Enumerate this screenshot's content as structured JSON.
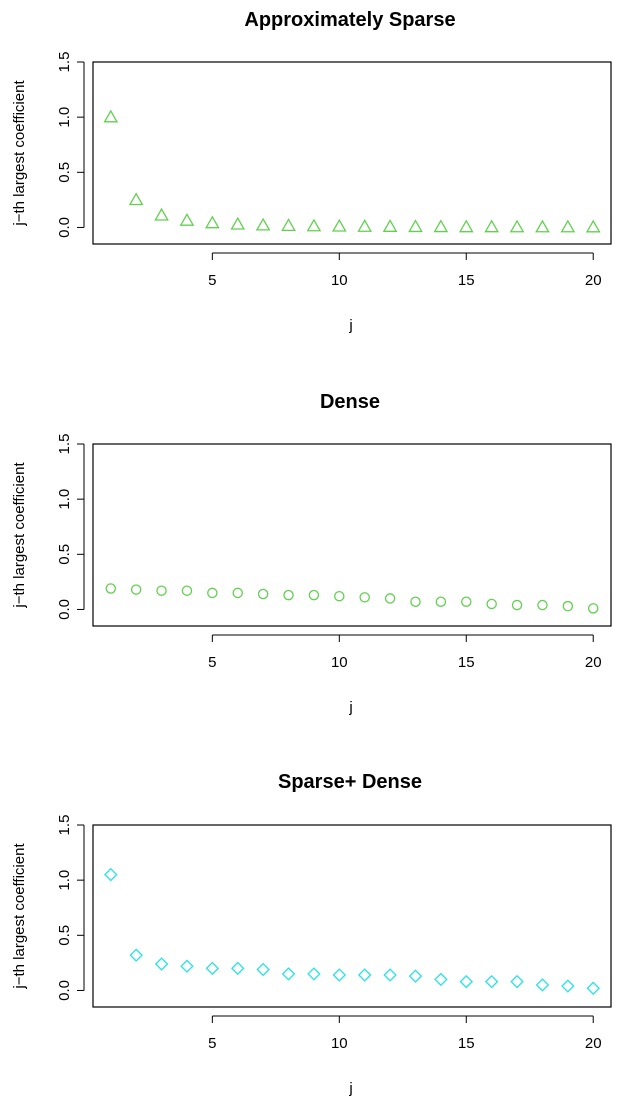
{
  "chart_data": [
    {
      "type": "scatter",
      "title": "Approximately Sparse",
      "xlabel": "j",
      "ylabel": "j−th largest coefficient",
      "xlim": [
        0.3,
        20.7
      ],
      "ylim": [
        -0.15,
        1.5
      ],
      "xticks": [
        "5",
        "10",
        "15",
        "20"
      ],
      "yticks": [
        "0.0",
        "0.5",
        "1.0",
        "1.5"
      ],
      "marker": "triangle",
      "color": "#61D04F",
      "grid": false,
      "x": [
        1,
        2,
        3,
        4,
        5,
        6,
        7,
        8,
        9,
        10,
        11,
        12,
        13,
        14,
        15,
        16,
        17,
        18,
        19,
        20
      ],
      "y": [
        1.0,
        0.25,
        0.11,
        0.0625,
        0.04,
        0.028,
        0.02,
        0.016,
        0.012,
        0.01,
        0.008,
        0.007,
        0.006,
        0.005,
        0.004,
        0.004,
        0.003,
        0.003,
        0.003,
        0.0025
      ]
    },
    {
      "type": "scatter",
      "title": "Dense",
      "xlabel": "j",
      "ylabel": "j−th largest coefficient",
      "xlim": [
        0.3,
        20.7
      ],
      "ylim": [
        -0.15,
        1.5
      ],
      "xticks": [
        "5",
        "10",
        "15",
        "20"
      ],
      "yticks": [
        "0.0",
        "0.5",
        "1.0",
        "1.5"
      ],
      "marker": "circle",
      "color": "#61D04F",
      "grid": false,
      "x": [
        1,
        2,
        3,
        4,
        5,
        6,
        7,
        8,
        9,
        10,
        11,
        12,
        13,
        14,
        15,
        16,
        17,
        18,
        19,
        20
      ],
      "y": [
        0.19,
        0.18,
        0.17,
        0.17,
        0.15,
        0.15,
        0.14,
        0.13,
        0.13,
        0.12,
        0.11,
        0.1,
        0.07,
        0.07,
        0.07,
        0.05,
        0.04,
        0.04,
        0.03,
        0.01
      ]
    },
    {
      "type": "scatter",
      "title": "Sparse+ Dense",
      "xlabel": "j",
      "ylabel": "j−th largest coefficient",
      "xlim": [
        0.3,
        20.7
      ],
      "ylim": [
        -0.15,
        1.5
      ],
      "xticks": [
        "5",
        "10",
        "15",
        "20"
      ],
      "yticks": [
        "0.0",
        "0.5",
        "1.0",
        "1.5"
      ],
      "marker": "diamond",
      "color": "#28E2E5",
      "grid": false,
      "x": [
        1,
        2,
        3,
        4,
        5,
        6,
        7,
        8,
        9,
        10,
        11,
        12,
        13,
        14,
        15,
        16,
        17,
        18,
        19,
        20
      ],
      "y": [
        1.05,
        0.32,
        0.24,
        0.22,
        0.2,
        0.2,
        0.19,
        0.15,
        0.15,
        0.14,
        0.14,
        0.14,
        0.13,
        0.1,
        0.08,
        0.08,
        0.08,
        0.05,
        0.04,
        0.02
      ]
    }
  ]
}
